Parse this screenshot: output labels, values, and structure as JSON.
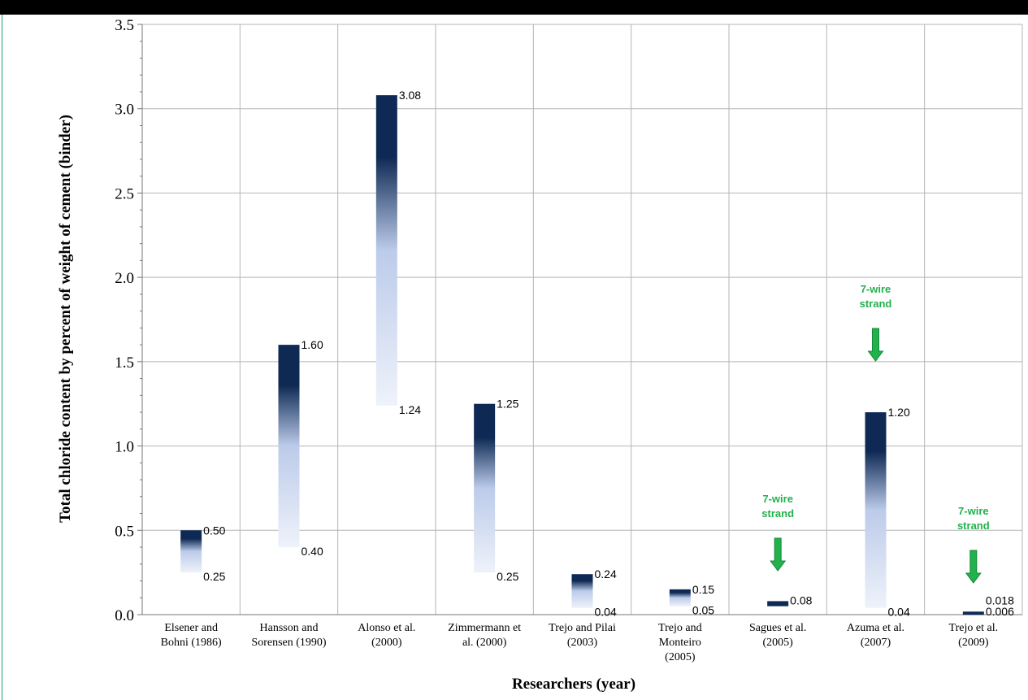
{
  "colors": {
    "bar_dark": "#0e2a54",
    "bar_mid": "#bccbea",
    "bar_light": "#eef2fa",
    "grid": "#b5b5b5",
    "annotation": "#22b14c",
    "top_bar": "#000000"
  },
  "chart_data": {
    "type": "bar",
    "subtype": "floating range bars (min to max)",
    "title": "",
    "xlabel": "Researchers (year)",
    "ylabel": "Total chloride content by percent of weight of cement (binder)",
    "ylim": [
      0,
      3.5
    ],
    "y_ticks": [
      "0.0",
      "0.5",
      "1.0",
      "1.5",
      "2.0",
      "2.5",
      "3.0",
      "3.5"
    ],
    "grid": true,
    "legend": "none",
    "categories": [
      [
        "Elsener and",
        "Bohni (1986)"
      ],
      [
        "Hansson and",
        "Sorensen (1990)"
      ],
      [
        "Alonso et al.",
        "(2000)"
      ],
      [
        "Zimmermann et",
        "al. (2000)"
      ],
      [
        "Trejo and Pilai",
        "(2003)"
      ],
      [
        "Trejo and",
        "Monteiro",
        "(2005)"
      ],
      [
        "Sagues et al.",
        "(2005)"
      ],
      [
        "Azuma et al.",
        "(2007)"
      ],
      [
        "Trejo et al.",
        "(2009)"
      ]
    ],
    "ranges": [
      {
        "low": 0.25,
        "high": 0.5,
        "low_label": "0.25",
        "high_label": "0.50"
      },
      {
        "low": 0.4,
        "high": 1.6,
        "low_label": "0.40",
        "high_label": "1.60"
      },
      {
        "low": 1.24,
        "high": 3.08,
        "low_label": "1.24",
        "high_label": "3.08"
      },
      {
        "low": 0.25,
        "high": 1.25,
        "low_label": "0.25",
        "high_label": "1.25"
      },
      {
        "low": 0.04,
        "high": 0.24,
        "low_label": "0.04",
        "high_label": "0.24"
      },
      {
        "low": 0.05,
        "high": 0.15,
        "low_label": "0.05",
        "high_label": "0.15"
      },
      {
        "low": 0.05,
        "high": 0.08,
        "low_label": "",
        "high_label": "0.08"
      },
      {
        "low": 0.04,
        "high": 1.2,
        "low_label": "0.04",
        "high_label": "1.20"
      },
      {
        "low": 0.006,
        "high": 0.018,
        "low_label": "0.006",
        "high_label": "0.018"
      }
    ],
    "annotations": [
      {
        "category_index": 6,
        "lines": [
          "7-wire",
          "strand"
        ],
        "arrow": "down"
      },
      {
        "category_index": 7,
        "lines": [
          "7-wire",
          "strand"
        ],
        "arrow": "down"
      },
      {
        "category_index": 8,
        "lines": [
          "7-wire",
          "strand"
        ],
        "arrow": "down"
      }
    ]
  }
}
